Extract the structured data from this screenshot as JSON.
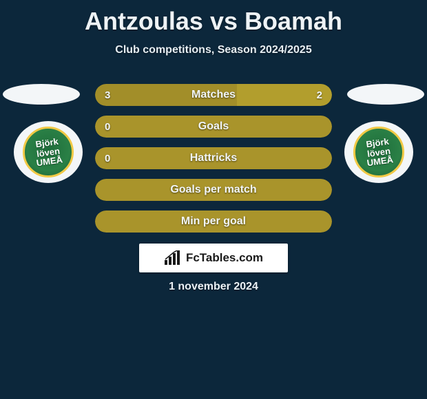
{
  "title": "Antzoulas vs Boamah",
  "subtitle": "Club competitions, Season 2024/2025",
  "colors": {
    "background": "#0c273b",
    "bar_left": "#a28e29",
    "bar_right": "#b29e2d",
    "bar_full": "#a9942b",
    "ellipse": "#f3f6f8",
    "badge_bg": "#f3f6f8",
    "badge_inner": "#2a8046",
    "badge_border": "#f1c945",
    "text": "#eef3f6"
  },
  "left_team_badge": "Björk löven UMEÅ",
  "right_team_badge": "Björk löven UMEÅ",
  "bars": [
    {
      "label": "Matches",
      "left": "3",
      "right": "2",
      "left_ratio": 0.6
    },
    {
      "label": "Goals",
      "left": "0",
      "right": "",
      "left_ratio": 1.0
    },
    {
      "label": "Hattricks",
      "left": "0",
      "right": "",
      "left_ratio": 1.0
    },
    {
      "label": "Goals per match",
      "left": "",
      "right": "",
      "left_ratio": 1.0
    },
    {
      "label": "Min per goal",
      "left": "",
      "right": "",
      "left_ratio": 1.0
    }
  ],
  "branding": "FcTables.com",
  "footer_date": "1 november 2024"
}
